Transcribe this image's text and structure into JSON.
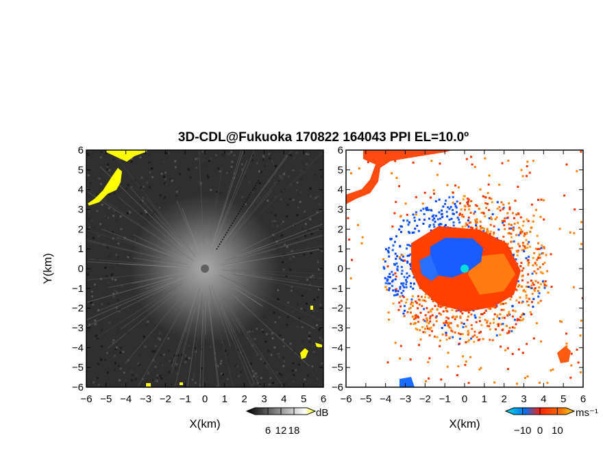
{
  "title": "3D-CDL@Fukuoka 170822 164043 PPI EL=10.0º",
  "chart_data": [
    {
      "type": "heatmap",
      "panel": "left",
      "quantity": "backscatter intensity",
      "xlabel": "X(km)",
      "ylabel": "Y(km)",
      "xlim": [
        -6,
        6
      ],
      "ylim": [
        -6,
        6
      ],
      "xticks": [
        "−6",
        "−5",
        "−4",
        "−3",
        "−2",
        "−1",
        "0",
        "1",
        "2",
        "3",
        "4",
        "5",
        "6"
      ],
      "yticks": [
        "6",
        "5",
        "4",
        "3",
        "2",
        "1",
        "0",
        "−1",
        "−2",
        "−3",
        "−4",
        "−5",
        "−6"
      ],
      "colorbar": {
        "unit": "dB",
        "ticks": [
          "6",
          "12",
          "18"
        ],
        "colors": [
          "#000000",
          "#ffffff",
          "#ffff00"
        ],
        "range": [
          0,
          24
        ]
      },
      "features": [
        "bright core around radar at origin",
        "radial noise streaks",
        "yellow cloud returns near (-5,3) to (-3,6)",
        "yellow returns near (5,-4)"
      ]
    },
    {
      "type": "heatmap",
      "panel": "right",
      "quantity": "radial velocity",
      "xlabel": "X(km)",
      "ylabel": "",
      "xlim": [
        -6,
        6
      ],
      "ylim": [
        -6,
        6
      ],
      "xticks": [
        "−6",
        "−5",
        "−4",
        "−3",
        "−2",
        "−1",
        "0",
        "1",
        "2",
        "3",
        "4",
        "5",
        "6"
      ],
      "yticks": [
        "6",
        "5",
        "4",
        "3",
        "2",
        "1",
        "0",
        "−1",
        "−2",
        "−3",
        "−4",
        "−5",
        "−6"
      ],
      "colorbar": {
        "unit": "ms⁻¹",
        "ticks": [
          "−10",
          "0",
          "10"
        ],
        "colors": [
          "#00e0e0",
          "#0050ff",
          "#ff3000",
          "#ff9000"
        ],
        "range": [
          -15,
          15
        ]
      },
      "features": [
        "blue (approaching) region north-west of origin",
        "red/orange (receding) region south-east of origin",
        "red returns near (-6,3) to (-3,6)"
      ]
    }
  ]
}
